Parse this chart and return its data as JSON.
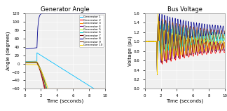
{
  "title_left": "Generator Angle",
  "title_right": "Bus Voltage",
  "xlabel": "Time (seconds)",
  "ylabel_left": "Angle (degrees)",
  "ylabel_right": "Voltage (pu)",
  "xlim_left": [
    0,
    10
  ],
  "ylim_left": [
    -60,
    120
  ],
  "xlim_right": [
    0,
    10
  ],
  "ylim_right": [
    0,
    1.6
  ],
  "yticks_left": [
    -60,
    -40,
    -20,
    0,
    20,
    40,
    60,
    80,
    100,
    120
  ],
  "yticks_right": [
    0,
    0.2,
    0.4,
    0.6,
    0.8,
    1.0,
    1.2,
    1.4,
    1.6
  ],
  "xticks": [
    0,
    2,
    4,
    6,
    8,
    10
  ],
  "legend_labels": [
    "Generator 1",
    "Generator 2",
    "Generator 3",
    "Generator 4",
    "Generator 5",
    "Generator 6",
    "Generator 7",
    "Generator 8",
    "Generator 9",
    "Generator 10"
  ],
  "gen_colors": [
    "#00bfff",
    "#ff0000",
    "#ff8c00",
    "#800080",
    "#adff2f",
    "#00ced1",
    "#800000",
    "#00008b",
    "#8b4513",
    "#ffd700"
  ],
  "n_generators": 10,
  "fault_time": 1.5,
  "t_end": 10.0,
  "dt": 0.005,
  "bg_color": "#f0f0f0"
}
